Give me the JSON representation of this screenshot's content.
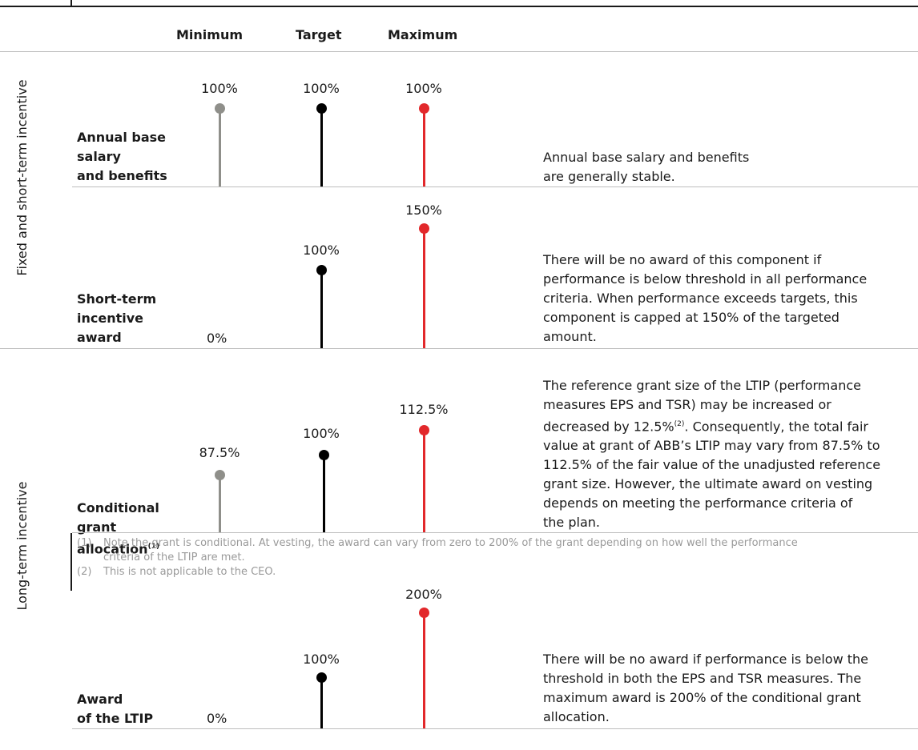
{
  "colors": {
    "minimum": "#8f8f8a",
    "target": "#000000",
    "maximum": "#e2282b",
    "rule": "#bdbdbd",
    "note": "#9a9a9a"
  },
  "columns": {
    "minimum": "Minimum",
    "target": "Target",
    "maximum": "Maximum"
  },
  "sections": {
    "fixed": "Fixed and short-term incentive",
    "long": "Long-term incentive"
  },
  "rows": {
    "base": {
      "label": [
        "Annual base",
        "salary",
        "and benefits"
      ],
      "minimum": "100%",
      "target": "100%",
      "maximum": "100%",
      "description": [
        "Annual base salary and benefits",
        "are generally stable."
      ]
    },
    "sti": {
      "label": [
        "Short-term",
        "incentive",
        "award"
      ],
      "minimum": "0%",
      "target": "100%",
      "maximum": "150%",
      "description": [
        "There will be no award of this component if",
        "performance is below threshold in all performance",
        "criteria. When performance exceeds targets, this",
        "component is capped at 150% of the targeted",
        "amount."
      ]
    },
    "grant": {
      "label": [
        "Conditional",
        "grant",
        "allocation"
      ],
      "label_sup": "(1)",
      "minimum": "87.5%",
      "target": "100%",
      "maximum": "112.5%",
      "description": [
        "The reference grant size of the LTIP (performance",
        "measures EPS and TSR) may be increased or",
        "decreased by 12.5%",
        ". Consequently, the total fair",
        "value at grant of ABB’s LTIP may vary from 87.5% to",
        "112.5% of the fair value of the unadjusted reference",
        "grant size. However, the ultimate award on vesting",
        "depends on meeting the performance criteria of",
        "the plan."
      ],
      "description_sup": "(2)"
    },
    "ltip": {
      "label": [
        "Award",
        "of the LTIP"
      ],
      "minimum": "0%",
      "target": "100%",
      "maximum": "200%",
      "description": [
        "There will be no award if performance is below the",
        "threshold in both the EPS and TSR measures. The",
        "maximum award is 200% of the conditional grant",
        "allocation."
      ]
    }
  },
  "footnotes": [
    {
      "mark": "(1)",
      "lines": [
        "Note the grant is conditional. At vesting, the award can vary from zero to 200% of the grant depending on how well the performance",
        "criteria of the LTIP are met."
      ]
    },
    {
      "mark": "(2)",
      "lines": [
        "This is not applicable to the CEO."
      ]
    }
  ]
}
